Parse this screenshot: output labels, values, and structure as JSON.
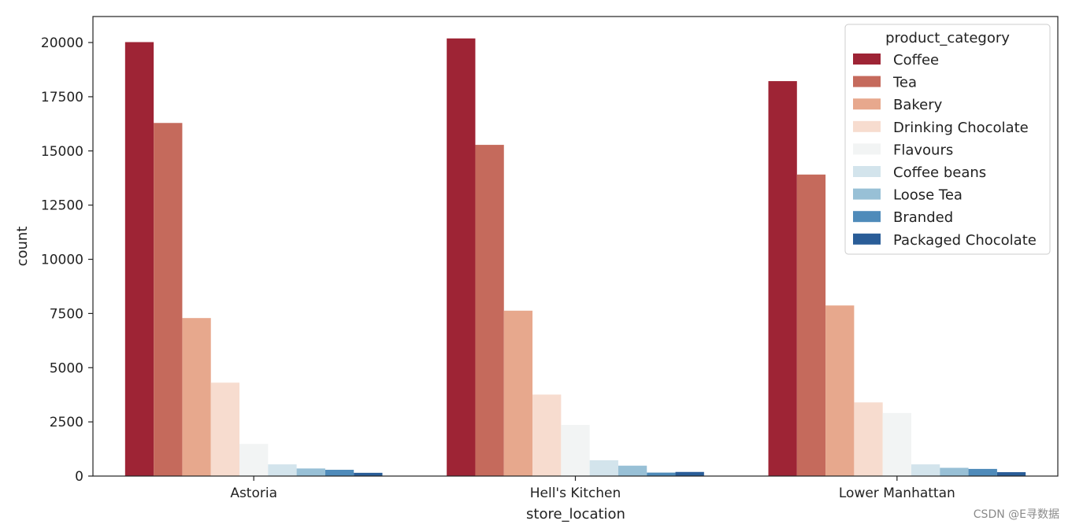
{
  "chart_data": {
    "type": "bar",
    "xlabel": "store_location",
    "ylabel": "count",
    "categories": [
      "Astoria",
      "Hell's Kitchen",
      "Lower Manhattan"
    ],
    "ylim": [
      0,
      21200
    ],
    "yticks": [
      0,
      2500,
      5000,
      7500,
      10000,
      12500,
      15000,
      17500,
      20000
    ],
    "grid": false,
    "legend": {
      "title": "product_category",
      "placement": "top-right"
    },
    "series": [
      {
        "name": "Coffee",
        "color": "#9e2435",
        "values": [
          20020,
          20190,
          18220
        ]
      },
      {
        "name": "Tea",
        "color": "#c56a5c",
        "values": [
          16290,
          15280,
          13910
        ]
      },
      {
        "name": "Bakery",
        "color": "#e7a88d",
        "values": [
          7290,
          7630,
          7870
        ]
      },
      {
        "name": "Drinking Chocolate",
        "color": "#f7dccf",
        "values": [
          4310,
          3760,
          3400
        ]
      },
      {
        "name": "Flavours",
        "color": "#f2f4f4",
        "values": [
          1480,
          2360,
          2910
        ]
      },
      {
        "name": "Coffee beans",
        "color": "#d3e4ec",
        "values": [
          540,
          730,
          540
        ]
      },
      {
        "name": "Loose Tea",
        "color": "#98c0d6",
        "values": [
          350,
          480,
          380
        ]
      },
      {
        "name": "Branded",
        "color": "#4f8bba",
        "values": [
          290,
          160,
          330
        ]
      },
      {
        "name": "Packaged Chocolate",
        "color": "#2a5d98",
        "values": [
          150,
          190,
          180
        ]
      }
    ]
  },
  "watermark": "CSDN @E寻数据"
}
